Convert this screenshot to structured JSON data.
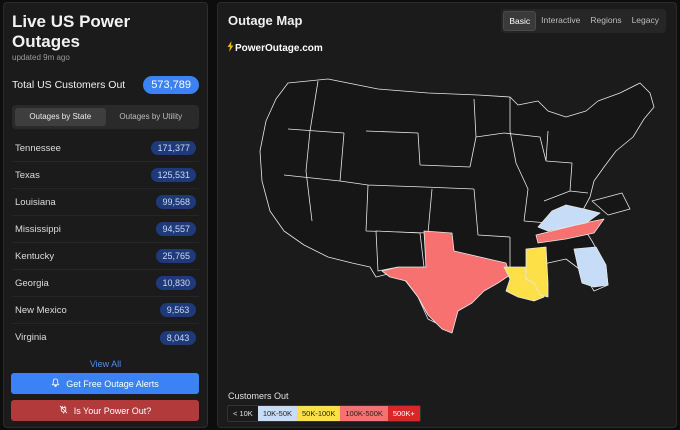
{
  "sidebar": {
    "title": "Live US Power Outages",
    "updated": "updated 9m ago",
    "total_label": "Total US Customers Out",
    "total_value": "573,789",
    "tabs": [
      "Outages by State",
      "Outages by Utility"
    ],
    "states": [
      {
        "name": "Tennessee",
        "value": "171,377"
      },
      {
        "name": "Texas",
        "value": "125,531"
      },
      {
        "name": "Louisiana",
        "value": "99,568"
      },
      {
        "name": "Mississippi",
        "value": "94,557"
      },
      {
        "name": "Kentucky",
        "value": "25,765"
      },
      {
        "name": "Georgia",
        "value": "10,830"
      },
      {
        "name": "New Mexico",
        "value": "9,563"
      },
      {
        "name": "Virginia",
        "value": "8,043"
      }
    ],
    "view_all": "View All",
    "alert_button": "Get Free Outage Alerts",
    "out_button": "Is Your Power Out?"
  },
  "main": {
    "title": "Outage Map",
    "tabs": [
      "Basic",
      "Interactive",
      "Regions",
      "Legacy"
    ],
    "active_tab": "Basic",
    "brand": "PowerOutage.com",
    "legend_title": "Customers Out",
    "legend": [
      {
        "label": "< 10K",
        "color": "#1a1a1a",
        "text": "#e0e0e0"
      },
      {
        "label": "10K-50K",
        "color": "#c6dcf7",
        "text": "#222222"
      },
      {
        "label": "50K-100K",
        "color": "#fde047",
        "text": "#222222"
      },
      {
        "label": "100K-500K",
        "color": "#f87171",
        "text": "#222222"
      },
      {
        "label": "500K+",
        "color": "#dc2626",
        "text": "#ffffff"
      }
    ]
  },
  "map_colors": {
    "none": "#161616",
    "light_blue": "#c6dcf7",
    "yellow": "#fde047",
    "salmon": "#f87171",
    "border": "#e8e8e8"
  }
}
